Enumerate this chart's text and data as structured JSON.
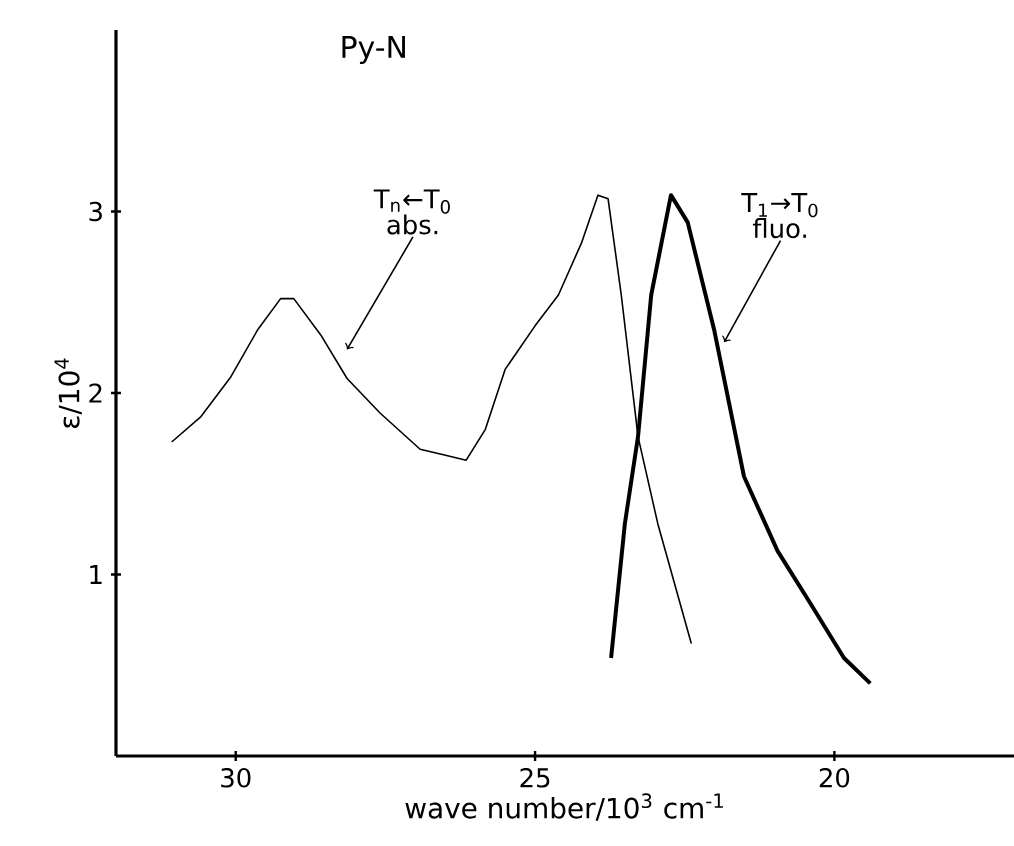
{
  "chart_data": {
    "type": "line",
    "title": "Py-N",
    "xlabel": "wave number/10$^{3}$ cm$^{-1}$",
    "ylabel": "ε/10$^{4}$",
    "xlim": [
      32,
      17
    ],
    "ylim": [
      0,
      4
    ],
    "xticks": [
      30,
      25,
      20
    ],
    "yticks": [
      1,
      2,
      3
    ],
    "grid": false,
    "marker": "none",
    "line_style": "solid",
    "series": [
      {
        "color": "#000000",
        "x": [
          31.07,
          30.58,
          30.08,
          29.63,
          29.25,
          29.03,
          28.58,
          28.14,
          27.59,
          26.92,
          26.53,
          26.15,
          25.83,
          25.5,
          25.0,
          24.61,
          24.22,
          23.95,
          23.78,
          23.56,
          23.28,
          22.95,
          22.39
        ],
        "values": [
          1.73,
          1.87,
          2.09,
          2.35,
          2.52,
          2.52,
          2.32,
          2.08,
          1.89,
          1.69,
          1.66,
          1.63,
          1.8,
          2.13,
          2.37,
          2.54,
          2.83,
          3.09,
          3.07,
          2.54,
          1.76,
          1.28,
          0.62
        ]
      },
      {
        "color": "#000000",
        "x": [
          23.73,
          23.5,
          23.28,
          23.06,
          22.73,
          22.45,
          22.01,
          21.51,
          20.95,
          20.4,
          19.84,
          19.4
        ],
        "values": [
          0.54,
          1.28,
          1.76,
          2.54,
          3.09,
          2.94,
          2.35,
          1.54,
          1.13,
          0.84,
          0.54,
          0.4
        ]
      }
    ],
    "annotations": [
      {
        "text": "T$_{n}$←T$_{0}$ abs.",
        "x": 28.14,
        "y": 2.24
      },
      {
        "text": "T$_{1}$→T$_{0}$ fluo.",
        "x": 21.84,
        "y": 2.28
      }
    ]
  }
}
